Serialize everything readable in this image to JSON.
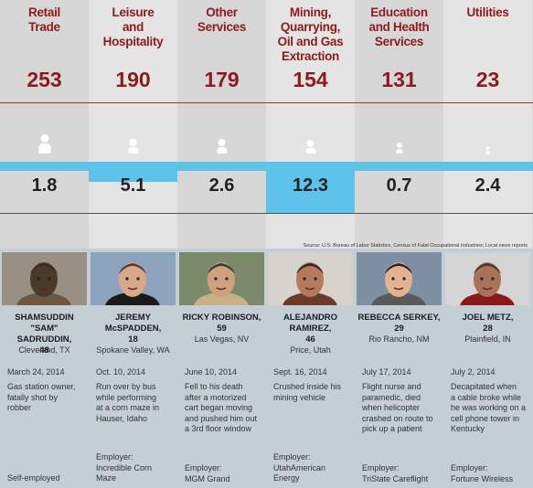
{
  "source": "Source: U.S. Bureau of Labor Statistics, Census of Fatal Occupational Industries; Local news reports",
  "colors": {
    "accent": "#8e1b1b",
    "highlight": "#5ec3ea"
  },
  "columns": [
    {
      "industry": [
        "Retail",
        "Trade"
      ],
      "deaths": "253",
      "rate": "1.8",
      "name": [
        "SHAMSUDDIN \"SAM\"",
        "SADRUDDIN,",
        "48"
      ],
      "city": "Cleveland, TX",
      "date": "March 24, 2014",
      "desc": [
        "Gas station owner,",
        "fatally shot by",
        "robber"
      ],
      "employer": [
        "Self-employed"
      ]
    },
    {
      "industry": [
        "Leisure",
        "and",
        "Hospitality"
      ],
      "deaths": "190",
      "rate": "5.1",
      "name": [
        "JEREMY",
        "McSPADDEN,",
        "18"
      ],
      "city": "Spokane Valley, WA",
      "date": "Oct. 10, 2014",
      "desc": [
        "Run over by bus",
        "while performing",
        "at a corn maze in",
        "Hauser, Idaho"
      ],
      "employer": [
        "Employer:",
        "Incredible Corn",
        "Maze"
      ]
    },
    {
      "industry": [
        "Other",
        "Services"
      ],
      "deaths": "179",
      "rate": "2.6",
      "name": [
        "RICKY ROBINSON,",
        "59"
      ],
      "city": "Las Vegas, NV",
      "date": "June 10, 2014",
      "desc": [
        "Fell to his death",
        "after a motorized",
        "cart began moving",
        "and pushed him out",
        "a 3rd floor window"
      ],
      "employer": [
        "Employer:",
        "MGM Grand"
      ]
    },
    {
      "industry": [
        "Mining,",
        "Quarrying,",
        "Oil and Gas",
        "Extraction"
      ],
      "deaths": "154",
      "rate": "12.3",
      "name": [
        "ALEJANDRO",
        "RAMIREZ,",
        "46"
      ],
      "city": "Price, Utah",
      "date": "Sept. 16, 2014",
      "desc": [
        "Crushed inside his",
        "mining vehicle"
      ],
      "employer": [
        "Employer:",
        "UtahAmerican",
        "Energy"
      ]
    },
    {
      "industry": [
        "Education",
        "and Health",
        "Services"
      ],
      "deaths": "131",
      "rate": "0.7",
      "name": [
        "REBECCA SERKEY,",
        "29"
      ],
      "city": "Rio Rancho, NM",
      "date": "July 17, 2014",
      "desc": [
        "Flight nurse and",
        "paramedic, died",
        "when helicopter",
        "crashed on route to",
        "pick up a patient"
      ],
      "employer": [
        "Employer:",
        "TriState Careflight"
      ]
    },
    {
      "industry": [
        "Utilities"
      ],
      "deaths": "23",
      "rate": "2.4",
      "name": [
        "JOEL METZ,",
        "28"
      ],
      "city": "Plainfield, IN",
      "date": "July 2, 2014",
      "desc": [
        "Decapitated when",
        "a cable broke while",
        "he was working on a",
        "cell phone tower in",
        "Kentucky"
      ],
      "employer": [
        "Employer:",
        "Fortune Wireless"
      ]
    }
  ]
}
